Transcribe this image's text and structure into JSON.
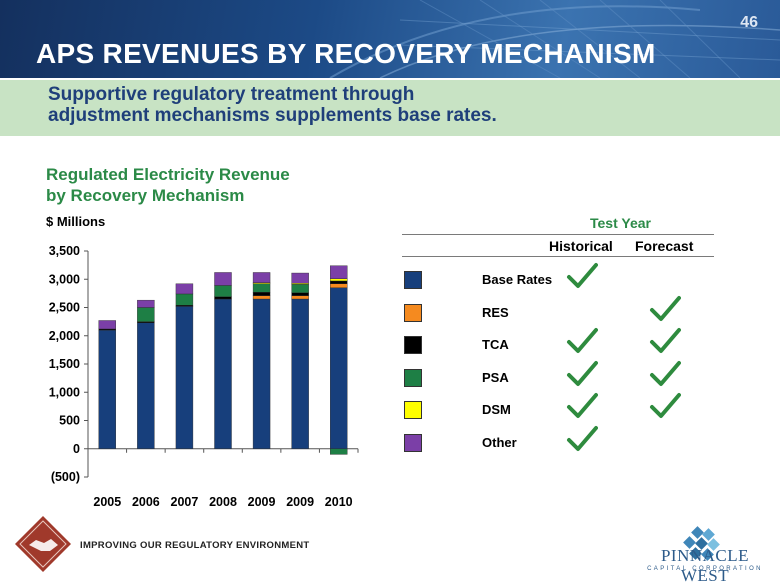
{
  "slide": {
    "page_number": "46",
    "title": "APS REVENUES BY RECOVERY MECHANISM",
    "subtitle_line1": "Supportive regulatory treatment through",
    "subtitle_line2": "adjustment mechanisms supplements base rates."
  },
  "chart_title_line1": "Regulated Electricity Revenue",
  "chart_title_line2": "by Recovery Mechanism",
  "units_label": "$ Millions",
  "chart_data": {
    "type": "bar",
    "stacked": true,
    "title": "Regulated Electricity Revenue by Recovery Mechanism",
    "ylabel": "$ Millions",
    "categories": [
      "2005",
      "2006",
      "2007",
      "2008",
      "2009",
      "2009",
      "2010"
    ],
    "ylim": [
      -500,
      3500
    ],
    "yticks": [
      3500,
      3000,
      2500,
      2000,
      1500,
      1000,
      500,
      0,
      -500
    ],
    "ytick_labels": [
      "3,500",
      "3,000",
      "2,500",
      "2,000",
      "1,500",
      "1,000",
      "500",
      "0",
      "(500)"
    ],
    "series": [
      {
        "name": "Base Rates",
        "color": "#173f7c",
        "values": [
          2100,
          2230,
          2520,
          2650,
          2650,
          2650,
          2850
        ]
      },
      {
        "name": "RES",
        "color": "#f58a1f",
        "values": [
          0,
          0,
          0,
          0,
          60,
          60,
          70
        ]
      },
      {
        "name": "TCA",
        "color": "#000000",
        "values": [
          20,
          20,
          20,
          40,
          60,
          50,
          50
        ]
      },
      {
        "name": "PSA",
        "color": "#1e7f45",
        "values": [
          0,
          250,
          200,
          200,
          150,
          150,
          -100
        ]
      },
      {
        "name": "DSM",
        "color": "#ffff00",
        "values": [
          0,
          0,
          0,
          0,
          20,
          20,
          40
        ]
      },
      {
        "name": "Other",
        "color": "#7b3fa7",
        "values": [
          150,
          130,
          180,
          230,
          180,
          180,
          230
        ]
      }
    ]
  },
  "legend_table": {
    "header": "Test Year",
    "col_historical": "Historical",
    "col_forecast": "Forecast",
    "rows": [
      {
        "label": "Base Rates",
        "color": "#173f7c",
        "historical": true,
        "forecast": false
      },
      {
        "label": "RES",
        "color": "#f58a1f",
        "historical": false,
        "forecast": true
      },
      {
        "label": "TCA",
        "color": "#000000",
        "historical": true,
        "forecast": true
      },
      {
        "label": "PSA",
        "color": "#1e7f45",
        "historical": true,
        "forecast": true
      },
      {
        "label": "DSM",
        "color": "#ffff00",
        "historical": true,
        "forecast": true
      },
      {
        "label": "Other",
        "color": "#7b3fa7",
        "historical": true,
        "forecast": false
      }
    ]
  },
  "footer": {
    "tagline": "IMPROVING OUR REGULATORY ENVIRONMENT",
    "logo_name": "PINNACLE WEST",
    "logo_sub": "CAPITAL CORPORATION"
  },
  "colors": {
    "header_blue": "#1c4a86",
    "subtitle_band": "#c8e3c4",
    "accent_green": "#2b8a47",
    "check_green": "#2e8b3e"
  }
}
